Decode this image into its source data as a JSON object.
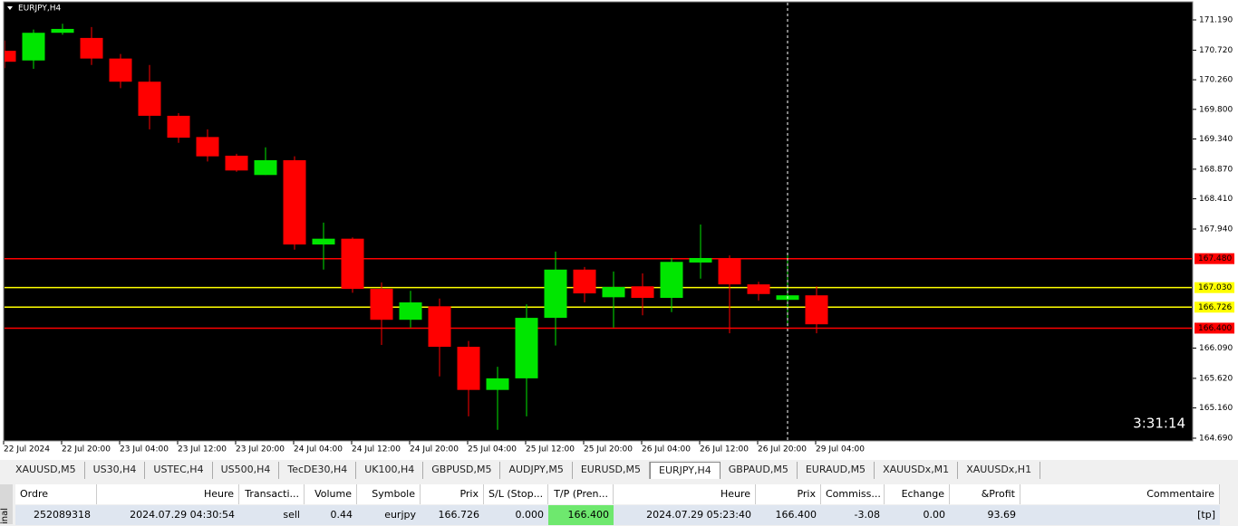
{
  "chart": {
    "type": "candlestick",
    "title": "EURJPY,H4",
    "ylim": [
      164.69,
      171.19
    ],
    "yticks": [
      {
        "value": 171.19,
        "label": "171.190"
      },
      {
        "value": 170.72,
        "label": "170.720"
      },
      {
        "value": 170.26,
        "label": "170.260"
      },
      {
        "value": 169.8,
        "label": "169.800"
      },
      {
        "value": 169.34,
        "label": "169.340"
      },
      {
        "value": 168.87,
        "label": "168.870"
      },
      {
        "value": 168.41,
        "label": "168.410"
      },
      {
        "value": 167.94,
        "label": "167.940"
      },
      {
        "value": 166.09,
        "label": "166.090"
      },
      {
        "value": 165.62,
        "label": "165.620"
      },
      {
        "value": 165.16,
        "label": "165.160"
      },
      {
        "value": 164.69,
        "label": "164.690"
      }
    ],
    "x_labels": [
      "22 Jul 2024",
      "22 Jul 20:00",
      "23 Jul 04:00",
      "23 Jul 12:00",
      "23 Jul 20:00",
      "24 Jul 04:00",
      "24 Jul 12:00",
      "24 Jul 20:00",
      "25 Jul 04:00",
      "25 Jul 12:00",
      "25 Jul 20:00",
      "26 Jul 04:00",
      "26 Jul 12:00",
      "26 Jul 20:00",
      "29 Jul 04:00"
    ],
    "up_color": "#00e600",
    "down_color": "#ff0000",
    "candles": [
      {
        "open": 170.71,
        "high": 170.87,
        "low": 170.44,
        "close": 170.54
      },
      {
        "open": 170.56,
        "high": 171.04,
        "low": 170.43,
        "close": 170.99
      },
      {
        "open": 170.99,
        "high": 171.13,
        "low": 170.96,
        "close": 171.05
      },
      {
        "open": 170.91,
        "high": 171.08,
        "low": 170.49,
        "close": 170.59
      },
      {
        "open": 170.59,
        "high": 170.66,
        "low": 170.13,
        "close": 170.23
      },
      {
        "open": 170.23,
        "high": 170.49,
        "low": 169.49,
        "close": 169.7
      },
      {
        "open": 169.7,
        "high": 169.74,
        "low": 169.28,
        "close": 169.36
      },
      {
        "open": 169.37,
        "high": 169.49,
        "low": 168.99,
        "close": 169.07
      },
      {
        "open": 169.08,
        "high": 169.11,
        "low": 168.83,
        "close": 168.85
      },
      {
        "open": 168.78,
        "high": 169.21,
        "low": 168.78,
        "close": 169.01
      },
      {
        "open": 169.01,
        "high": 169.07,
        "low": 167.62,
        "close": 167.7
      },
      {
        "open": 167.7,
        "high": 168.04,
        "low": 167.31,
        "close": 167.79
      },
      {
        "open": 167.79,
        "high": 167.81,
        "low": 166.95,
        "close": 167.01
      },
      {
        "open": 167.01,
        "high": 167.11,
        "low": 166.14,
        "close": 166.53
      },
      {
        "open": 166.53,
        "high": 166.98,
        "low": 166.41,
        "close": 166.8
      },
      {
        "open": 166.74,
        "high": 166.86,
        "low": 165.65,
        "close": 166.11
      },
      {
        "open": 166.11,
        "high": 166.2,
        "low": 165.03,
        "close": 165.44
      },
      {
        "open": 165.44,
        "high": 165.8,
        "low": 164.82,
        "close": 165.62
      },
      {
        "open": 165.62,
        "high": 166.77,
        "low": 165.03,
        "close": 166.56
      },
      {
        "open": 166.56,
        "high": 167.59,
        "low": 166.13,
        "close": 167.31
      },
      {
        "open": 167.31,
        "high": 167.35,
        "low": 166.8,
        "close": 166.94
      },
      {
        "open": 166.88,
        "high": 167.28,
        "low": 166.41,
        "close": 167.04
      },
      {
        "open": 167.05,
        "high": 167.25,
        "low": 166.6,
        "close": 166.87
      },
      {
        "open": 166.87,
        "high": 167.49,
        "low": 166.65,
        "close": 167.43
      },
      {
        "open": 167.42,
        "high": 168.01,
        "low": 167.17,
        "close": 167.49
      },
      {
        "open": 167.49,
        "high": 167.53,
        "low": 166.32,
        "close": 167.08
      },
      {
        "open": 167.08,
        "high": 167.12,
        "low": 166.83,
        "close": 166.93
      },
      {
        "open": 166.84,
        "high": 167.53,
        "low": 166.43,
        "close": 166.91
      },
      {
        "open": 166.91,
        "high": 167.05,
        "low": 166.32,
        "close": 166.46
      }
    ],
    "levels": [
      {
        "value": 167.48,
        "label": "167.480",
        "color": "#ff0000"
      },
      {
        "value": 167.03,
        "label": "167.030",
        "color": "#ffff00"
      },
      {
        "value": 166.726,
        "label": "166.726",
        "color": "#ffff00"
      },
      {
        "value": 166.4,
        "label": "166.400",
        "color": "#ff0000"
      }
    ],
    "timer": "3:31:14"
  },
  "tabs": [
    "XAUUSD,M5",
    "US30,H4",
    "USTEC,H4",
    "US500,H4",
    "TecDE30,H4",
    "UK100,H4",
    "GBPUSD,M5",
    "AUDJPY,M5",
    "EURUSD,M5",
    "EURJPY,H4",
    "GBPAUD,M5",
    "EURAUD,M5",
    "XAUUSDx,M1",
    "XAUUSDx,H1"
  ],
  "active_tab": 9,
  "side_label": "inal",
  "table": {
    "headers": [
      "Ordre",
      "Heure",
      "Transacti...",
      "Volume",
      "Symbole",
      "Prix",
      "S/L (Stop...",
      "T/P (Pren...",
      "Heure",
      "Prix",
      "Commiss...",
      "Echange",
      "&Profit",
      "Commentaire"
    ],
    "rows": [
      [
        "252089318",
        "2024.07.29 04:30:54",
        "sell",
        "0.44",
        "eurjpy",
        "166.726",
        "0.000",
        "166.400",
        "2024.07.29 05:23:40",
        "166.400",
        "-3.08",
        "0.00",
        "93.69",
        "[tp]"
      ]
    ]
  }
}
